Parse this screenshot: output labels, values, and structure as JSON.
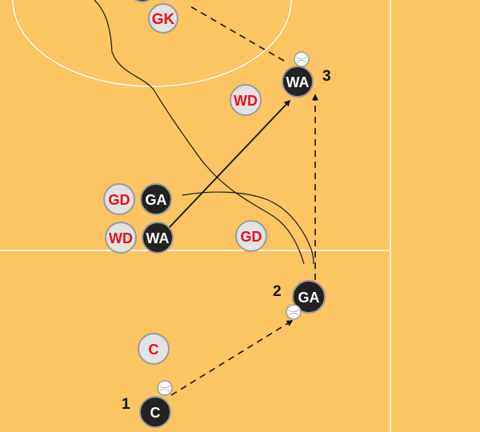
{
  "colors": {
    "court": "#fcc462",
    "court_line": "#ffffff",
    "attacker_fill": "#222222",
    "attacker_text": "#ffffff",
    "defender_fill": "#e3e3e3",
    "defender_text": "#e8111a",
    "token_border": "#9a9a9a",
    "arrow": "#111111"
  },
  "players": {
    "gk": "GK",
    "wd_top": "WD",
    "gd_left": "GD",
    "ga_left": "GA",
    "wd_left": "WD",
    "wa_left": "WA",
    "gd_center": "GD",
    "wa_target": "WA",
    "ga_mid": "GA",
    "c_defender": "C",
    "c_attacker": "C"
  },
  "steps": {
    "one": "1",
    "two": "2",
    "three": "3"
  }
}
